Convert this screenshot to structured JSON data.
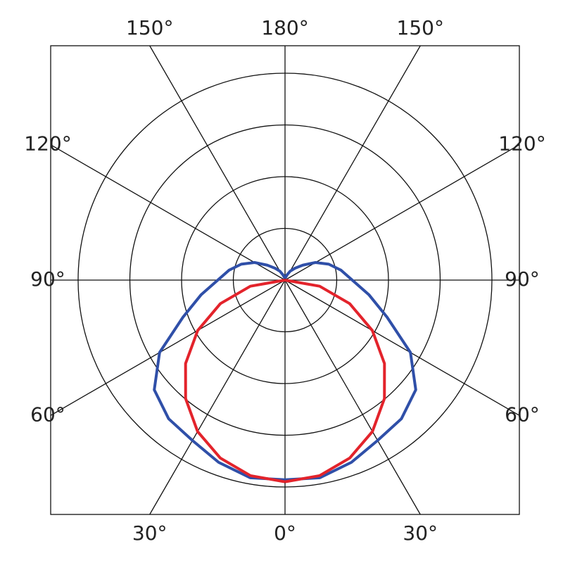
{
  "chart_data": {
    "type": "polar",
    "x": [
      0,
      10,
      20,
      30,
      40,
      50,
      60,
      70,
      80,
      90,
      100,
      110,
      120,
      130,
      140,
      150,
      160,
      170,
      180
    ],
    "series": [
      {
        "color": "#2f4fa8",
        "values": [
          3.86,
          3.88,
          3.75,
          3.58,
          3.5,
          3.3,
          2.8,
          2.1,
          1.65,
          1.3,
          1.1,
          0.9,
          0.68,
          0.45,
          0.3,
          0.2,
          0.1,
          0.05,
          0.03
        ]
      },
      {
        "color": "#e3232b",
        "values": [
          3.9,
          3.84,
          3.66,
          3.38,
          2.99,
          2.51,
          1.95,
          1.33,
          0.68,
          0,
          null,
          null,
          null,
          null,
          null,
          null,
          null,
          null,
          null
        ]
      }
    ],
    "rlim": [
      0,
      4
    ],
    "rticks": [
      1,
      2,
      3,
      4
    ],
    "xticks": [
      {
        "value": 0,
        "label": "0°"
      },
      {
        "value": 30,
        "label": "30°"
      },
      {
        "value": 60,
        "label": "60°"
      },
      {
        "value": 90,
        "label": "90°"
      },
      {
        "value": 120,
        "label": "120°"
      },
      {
        "value": 150,
        "label": "150°"
      },
      {
        "value": 180,
        "label": "180°"
      }
    ]
  }
}
